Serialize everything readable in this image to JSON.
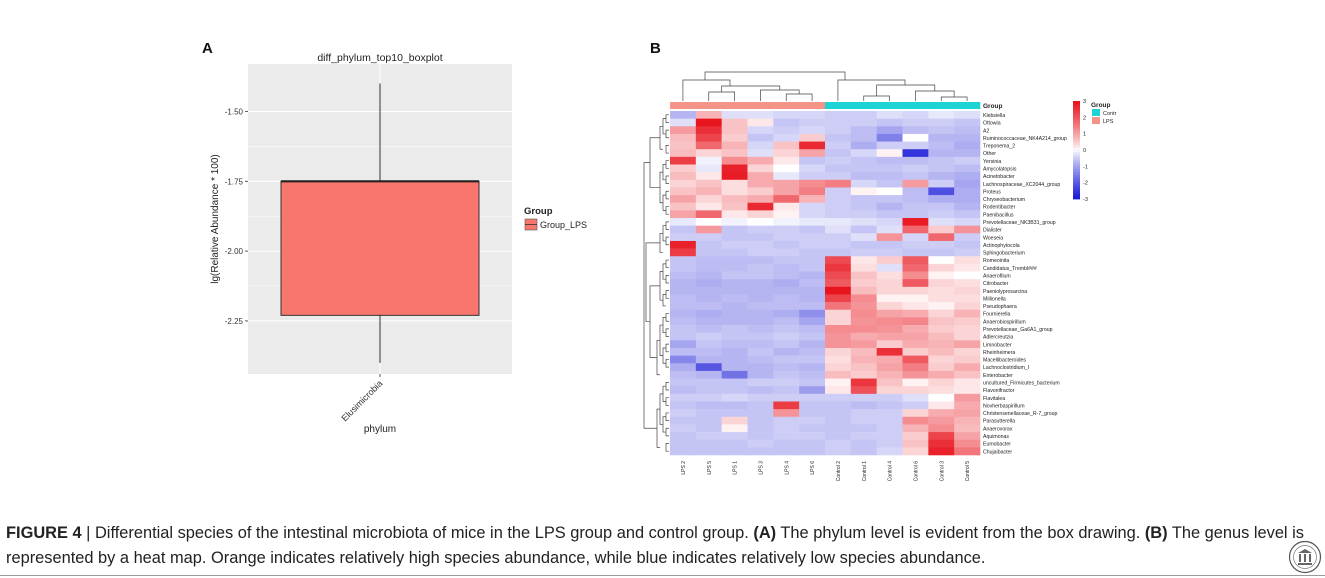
{
  "chart_data": [
    {
      "type": "box",
      "panel_label": "A",
      "title": "diff_phylum_top10_boxplot",
      "xlabel": "phylum",
      "ylabel": "lg(Relative Abundance * 100)",
      "categories": [
        "Elusimicrobia"
      ],
      "y_ticks": [
        -1.5,
        -1.75,
        -2.0,
        -2.25
      ],
      "y_tick_labels": [
        "-1.50",
        "-1.75",
        "-2.00",
        "-2.25"
      ],
      "ylim": [
        -2.44,
        -1.33
      ],
      "boxes": [
        {
          "category": "Elusimicrobia",
          "group": "Group_LPS",
          "whisker_low": -2.4,
          "q1": -2.23,
          "median": -1.75,
          "q3": -1.75,
          "whisker_high": -1.4
        }
      ],
      "legend": {
        "title": "Group",
        "entries": [
          "Group_LPS"
        ],
        "placement": "right"
      },
      "colors": {
        "box_fill": "#f8766d",
        "panel_bg": "#ebebeb",
        "grid": "#ffffff"
      }
    },
    {
      "type": "heatmap",
      "panel_label": "B",
      "samples": [
        "LPS 2",
        "LPS 5",
        "LPS 1",
        "LPS 3",
        "LPS 4",
        "LPS 6",
        "Control 2",
        "Control 1",
        "Control 4",
        "Control 6",
        "Control 3",
        "Control 5"
      ],
      "sample_groups": [
        "LPS",
        "LPS",
        "LPS",
        "LPS",
        "LPS",
        "LPS",
        "Contr",
        "Contr",
        "Contr",
        "Contr",
        "Contr",
        "Contr"
      ],
      "group_annotation_label": "Group",
      "genera": [
        "Klebsiella",
        "Ottowia",
        "A2",
        "Ruminococcaceae_NK4A214_group",
        "Treponema_2",
        "Other",
        "Yersinia",
        "Amycolatopsis",
        "Acinetobacter",
        "Lachnospiraceae_XC2044_group",
        "Proteus",
        "Chryseobacterium",
        "Rodentibacter",
        "Paenibacillus",
        "Prevotellaceae_NK3B31_group",
        "Dialister",
        "Woeseia",
        "Actinophytocola",
        "Sphingobacterium",
        "Romeoinita",
        "Candidatus_Trembl###",
        "Anaerofilum",
        "Citrobacter",
        "Paeniolyprosarcina",
        "Millionella",
        "Pseudophaera",
        "Fournierella",
        "Anaerobiospirillum",
        "Prevotellaceae_Ga6A1_group",
        "Adlercreutzia",
        "Limnobacter",
        "Rheinheimera",
        "Macellibacteroides",
        "Lachnoclostridium_I",
        "Enterobacter",
        "uncultured_Firmicutes_bacterium",
        "Flavonifractor",
        "Flavitalea",
        "Novherbaspirillum",
        "Christensenellaceae_R-7_group",
        "Parasutterella",
        "Anaerovorax",
        "Aquimonas",
        "Eumobacter",
        "Chujaibacter"
      ],
      "values": [
        [
          -0.8,
          0.8,
          -0.3,
          -0.3,
          -0.4,
          -0.4,
          -0.5,
          -0.5,
          -0.3,
          -0.4,
          -0.2,
          -0.3
        ],
        [
          -0.3,
          3.0,
          0.6,
          0.2,
          -0.6,
          -0.5,
          -0.5,
          -0.5,
          -0.6,
          -0.5,
          -0.5,
          -0.6
        ],
        [
          1.1,
          2.6,
          0.6,
          -0.4,
          -0.5,
          -0.4,
          -0.5,
          -0.7,
          -1.0,
          -0.7,
          -0.6,
          -0.7
        ],
        [
          0.7,
          2.3,
          0.5,
          -0.6,
          -0.4,
          0.5,
          -0.6,
          -0.7,
          -1.5,
          0.0,
          -0.8,
          -0.8
        ],
        [
          0.6,
          1.8,
          0.8,
          -0.4,
          0.6,
          2.7,
          -0.5,
          -0.9,
          -0.5,
          -0.5,
          -0.7,
          -0.9
        ],
        [
          0.7,
          0.4,
          0.6,
          -0.3,
          0.4,
          1.0,
          -0.6,
          -0.4,
          0.1,
          -2.6,
          -0.8,
          -0.8
        ],
        [
          2.4,
          -0.1,
          1.3,
          0.9,
          0.2,
          -0.6,
          -0.5,
          -0.6,
          -0.7,
          -0.7,
          -0.6,
          -0.5
        ],
        [
          0.5,
          -0.2,
          2.8,
          0.4,
          0.0,
          -0.4,
          -0.6,
          -0.6,
          -0.6,
          -0.5,
          -0.6,
          -0.7
        ],
        [
          0.7,
          0.2,
          2.9,
          0.9,
          -0.2,
          -0.5,
          -0.5,
          -0.7,
          -0.7,
          -0.6,
          -0.8,
          -0.9
        ],
        [
          0.4,
          0.6,
          0.3,
          0.9,
          1.0,
          1.3,
          1.5,
          -0.4,
          -0.6,
          1.1,
          -0.5,
          -1.0
        ],
        [
          0.6,
          0.8,
          0.3,
          0.5,
          1.0,
          1.5,
          -0.5,
          0.1,
          0.0,
          -0.7,
          -2.2,
          -0.9
        ],
        [
          1.0,
          0.4,
          0.7,
          0.9,
          1.8,
          0.8,
          -0.5,
          -0.6,
          -0.6,
          -0.7,
          -0.9,
          -0.9
        ],
        [
          0.6,
          0.2,
          0.6,
          2.7,
          0.2,
          -0.4,
          -0.5,
          -0.6,
          -0.8,
          -0.6,
          -0.6,
          -0.8
        ],
        [
          1.0,
          1.8,
          0.2,
          0.4,
          0.1,
          -0.4,
          -0.5,
          -0.5,
          -0.6,
          -0.6,
          -0.5,
          -0.6
        ],
        [
          -0.2,
          0.0,
          -0.1,
          0.0,
          -0.1,
          -0.2,
          -0.2,
          -0.3,
          -0.4,
          2.9,
          -0.3,
          -0.4
        ],
        [
          -0.6,
          1.1,
          -0.6,
          -0.5,
          -0.5,
          -0.6,
          -0.3,
          -0.6,
          -0.3,
          1.8,
          0.5,
          1.2
        ],
        [
          -0.5,
          -0.5,
          -0.6,
          -0.6,
          -0.5,
          -0.5,
          -0.5,
          -0.3,
          1.2,
          -0.4,
          1.8,
          -0.5
        ],
        [
          2.8,
          -0.6,
          -0.5,
          -0.5,
          -0.6,
          -0.5,
          -0.5,
          -0.6,
          -0.6,
          -0.5,
          -0.5,
          -0.6
        ],
        [
          2.4,
          -0.6,
          -0.6,
          -0.5,
          -0.5,
          -0.6,
          -0.6,
          -0.5,
          -0.5,
          -0.6,
          -0.6,
          -0.5
        ],
        [
          -0.6,
          -0.7,
          -0.7,
          -0.7,
          -0.6,
          -0.6,
          2.2,
          0.2,
          0.5,
          2.0,
          0.0,
          0.3
        ],
        [
          -0.6,
          -0.7,
          -0.7,
          -0.6,
          -0.7,
          -0.6,
          2.5,
          0.3,
          -0.3,
          1.8,
          0.4,
          0.2
        ],
        [
          -0.7,
          -0.8,
          -0.6,
          -0.6,
          -0.7,
          -0.8,
          2.2,
          0.6,
          0.3,
          1.3,
          0.1,
          0.0
        ],
        [
          -0.8,
          -0.9,
          -0.8,
          -0.8,
          -0.9,
          -0.7,
          2.0,
          0.5,
          0.4,
          2.0,
          0.4,
          0.3
        ],
        [
          -0.8,
          -0.8,
          -0.8,
          -0.8,
          -0.8,
          -0.8,
          3.0,
          0.7,
          0.4,
          0.4,
          0.3,
          0.4
        ],
        [
          -0.7,
          -0.8,
          -0.7,
          -0.8,
          -0.7,
          -0.8,
          2.3,
          1.3,
          0.1,
          0.1,
          0.3,
          0.3
        ],
        [
          -0.7,
          -0.7,
          -0.8,
          -0.7,
          -0.7,
          -0.7,
          1.6,
          1.2,
          0.4,
          0.2,
          0.1,
          0.4
        ],
        [
          -0.8,
          -0.9,
          -0.8,
          -0.8,
          -0.9,
          -1.3,
          0.4,
          1.3,
          1.0,
          0.9,
          0.4,
          0.8
        ],
        [
          -0.7,
          -0.8,
          -0.8,
          -0.8,
          -0.7,
          -1.0,
          0.4,
          1.2,
          1.3,
          1.4,
          0.6,
          0.5
        ],
        [
          -0.6,
          -0.7,
          -0.6,
          -0.7,
          -0.6,
          -0.7,
          1.3,
          1.3,
          1.2,
          0.9,
          0.5,
          0.4
        ],
        [
          -0.6,
          -0.5,
          -0.6,
          -0.6,
          -0.5,
          -0.6,
          1.2,
          0.9,
          1.0,
          1.0,
          0.7,
          0.4
        ],
        [
          -1.0,
          -0.6,
          -0.7,
          -0.7,
          -0.6,
          -0.8,
          1.2,
          1.1,
          0.5,
          0.9,
          0.8,
          1.0
        ],
        [
          -0.7,
          -0.7,
          -0.8,
          -0.6,
          -0.8,
          -0.7,
          0.4,
          0.7,
          2.6,
          0.5,
          0.7,
          0.4
        ],
        [
          -1.4,
          -0.8,
          -0.8,
          -0.7,
          -0.6,
          -0.6,
          0.3,
          0.8,
          0.9,
          2.0,
          0.4,
          0.5
        ],
        [
          -0.9,
          -2.1,
          -0.8,
          -0.8,
          -0.7,
          -0.8,
          0.4,
          0.6,
          1.0,
          1.5,
          0.5,
          0.9
        ],
        [
          -0.7,
          -0.8,
          -1.7,
          -0.8,
          -0.6,
          -0.7,
          0.7,
          0.5,
          0.8,
          1.2,
          0.9,
          0.6
        ],
        [
          -0.6,
          -0.6,
          -0.6,
          -0.5,
          -0.5,
          -0.6,
          0.1,
          2.5,
          0.6,
          0.1,
          0.4,
          0.2
        ],
        [
          -0.7,
          -0.6,
          -0.6,
          -0.7,
          -0.6,
          -1.1,
          0.2,
          2.1,
          0.4,
          0.4,
          0.3,
          0.2
        ],
        [
          -0.5,
          -0.5,
          -0.4,
          -0.5,
          -0.5,
          -0.5,
          -0.5,
          -0.5,
          -0.5,
          -0.3,
          0.0,
          1.1
        ],
        [
          -0.6,
          -0.7,
          -0.7,
          -0.6,
          2.4,
          -0.6,
          -0.6,
          -0.7,
          -0.6,
          -0.5,
          0.2,
          0.9
        ],
        [
          -0.5,
          -0.6,
          -0.6,
          -0.6,
          1.2,
          -0.6,
          -0.6,
          -0.5,
          -0.5,
          0.4,
          0.9,
          1.0
        ],
        [
          -0.6,
          -0.6,
          0.4,
          -0.6,
          -0.5,
          -0.5,
          -0.6,
          -0.5,
          -0.5,
          1.3,
          1.1,
          0.8
        ],
        [
          -0.5,
          -0.6,
          0.1,
          -0.6,
          -0.5,
          -0.6,
          -0.6,
          -0.6,
          -0.5,
          0.8,
          1.3,
          0.7
        ],
        [
          -0.6,
          -0.5,
          -0.5,
          -0.6,
          -0.5,
          -0.5,
          -0.6,
          -0.5,
          -0.5,
          0.5,
          2.3,
          1.0
        ],
        [
          -0.6,
          -0.6,
          -0.6,
          -0.5,
          -0.6,
          -0.6,
          -0.5,
          -0.6,
          -0.5,
          0.6,
          2.6,
          1.3
        ],
        [
          -0.6,
          -0.6,
          -0.6,
          -0.6,
          -0.6,
          -0.6,
          -0.5,
          -0.6,
          -0.4,
          0.4,
          2.8,
          1.6
        ]
      ],
      "color_scale": {
        "min": -3,
        "max": 3,
        "ticks": [
          3,
          2,
          1,
          0,
          -1,
          -2,
          -3
        ],
        "low": "#1a1ad8",
        "mid": "#ffffff",
        "high": "#e8141e"
      },
      "legend": {
        "title": "Group",
        "entries": [
          "Contr",
          "LPS"
        ],
        "placement": "right"
      },
      "colors": {
        "LPS": "#f49489",
        "Contr": "#1ed3d4"
      }
    }
  ],
  "caption": {
    "figure_label": "FIGURE 4",
    "separator": " | ",
    "text": "Differential species of the intestinal microbiota of mice in the LPS group and control group. ",
    "part_a_label": "(A)",
    "part_a_text": " The phylum level is evident from the box drawing. ",
    "part_b_label": "(B)",
    "part_b_text": " The genus level is represented by a heat map. Orange indicates relatively high species abundance, while blue indicates relatively low species abundance."
  },
  "seal_icon": "university-seal-icon"
}
